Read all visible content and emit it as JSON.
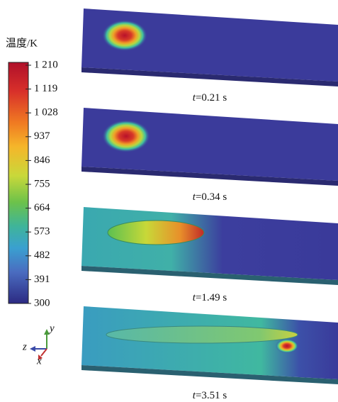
{
  "colorbar": {
    "title": "温度/K",
    "ticks": [
      {
        "value": 1210,
        "label": "1 210"
      },
      {
        "value": 1119,
        "label": "1 119"
      },
      {
        "value": 1028,
        "label": "1 028"
      },
      937,
      846,
      755,
      664,
      573,
      482,
      391,
      300
    ]
  },
  "panels": [
    {
      "var": "t",
      "rest": "=0.21 s"
    },
    {
      "var": "t",
      "rest": "=0.34 s"
    },
    {
      "var": "t",
      "rest": "=1.49 s"
    },
    {
      "var": "t",
      "rest": "=3.51 s"
    }
  ],
  "axes": {
    "y": "y",
    "z": "z",
    "x": "x"
  }
}
